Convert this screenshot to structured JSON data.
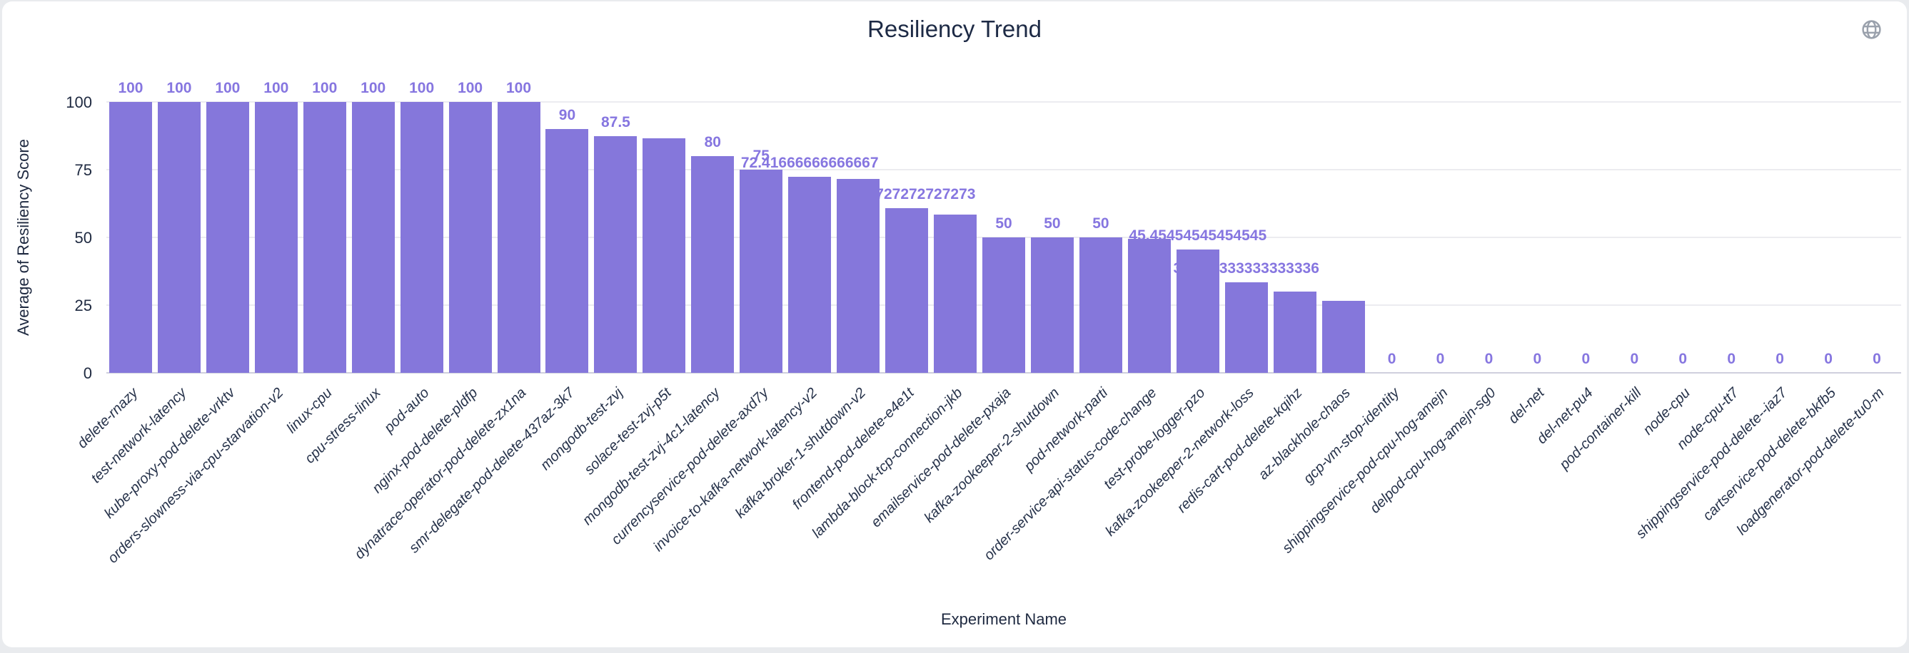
{
  "header": {
    "title": "Resiliency Trend"
  },
  "colors": {
    "bar": "#8577DB",
    "value_label": "#8676E0",
    "title_text": "#1d2a45",
    "axis_text": "#1e2940",
    "gridline": "#ececf0",
    "axis_line": "#cfcfdd",
    "card_background": "#ffffff",
    "page_background": "#e9ebee",
    "globe_icon": "#9aa1ac"
  },
  "chart_data": {
    "type": "bar",
    "title": "Resiliency Trend",
    "xlabel": "Experiment Name",
    "ylabel": "Average of Resiliency Score",
    "ylim": [
      0,
      100
    ],
    "yticks": [
      0,
      25,
      50,
      75,
      100
    ],
    "grid": true,
    "legend": "none",
    "bar_label_position": "top",
    "x_tick_rotation": -45,
    "categories": [
      "delete-rnazy",
      "test-network-latency",
      "kube-proxy-pod-delete-vrktv",
      "orders-slowness-via-cpu-starvation-v2",
      "linux-cpu",
      "cpu-stress-linux",
      "pod-auto",
      "nginx-pod-delete-pldfp",
      "dynatrace-operator-pod-delete-zx1na",
      "smr-delegate-pod-delete-437az-3k7",
      "mongodb-test-zvj",
      "solace-test-zvj-p5t",
      "mongodb-test-zvj-4c1-latency",
      "currencyservice-pod-delete-axd7y",
      "invoice-to-kafka-network-latency-v2",
      "kafka-broker-1-shutdown-v2",
      "frontend-pod-delete-e4e1t",
      "lambda-block-tcp-connection-jkb",
      "emailservice-pod-delete-pxaja",
      "kafka-zookeeper-2-shutdown",
      "pod-network-parti",
      "order-service-api-status-code-change",
      "test-probe-logger-pzo",
      "kafka-zookeeper-2-network-loss",
      "redis-cart-pod-delete-kqihz",
      "az-blackhole-chaos",
      "gcp-vm-stop-identity",
      "shippingservice-pod-cpu-hog-amejn",
      "delpod-cpu-hog-amejn-sg0",
      "del-net",
      "del-net-pu4",
      "pod-container-kill",
      "node-cpu",
      "node-cpu-tt7",
      "shippingservice-pod-delete--iaz7",
      "cartservice-pod-delete-bkfb5",
      "loadgenerator-pod-delete-tu0-m"
    ],
    "values": [
      100,
      100,
      100,
      100,
      100,
      100,
      100,
      100,
      100,
      90,
      87.5,
      86.5,
      80,
      75,
      72.41666666666667,
      71.7,
      60.72727272727273,
      58.4,
      50,
      50,
      50,
      49.5,
      45.45454545454545,
      33.333333333333336,
      30,
      26.7,
      0,
      0,
      0,
      0,
      0,
      0,
      0,
      0,
      0,
      0,
      0
    ],
    "visible_value_labels": [
      "100",
      "100",
      "100",
      "100",
      "100",
      "100",
      "100",
      "100",
      "100",
      "90",
      "87.5",
      null,
      "80",
      "75",
      "72.41666666666667",
      null,
      "60.72727272727273",
      null,
      "50",
      "50",
      "50",
      null,
      "45.45454545454545",
      "33.333333333333336",
      null,
      null,
      "0",
      "0",
      "0",
      "0",
      "0",
      "0",
      "0",
      "0",
      "0",
      "0",
      "0"
    ]
  }
}
